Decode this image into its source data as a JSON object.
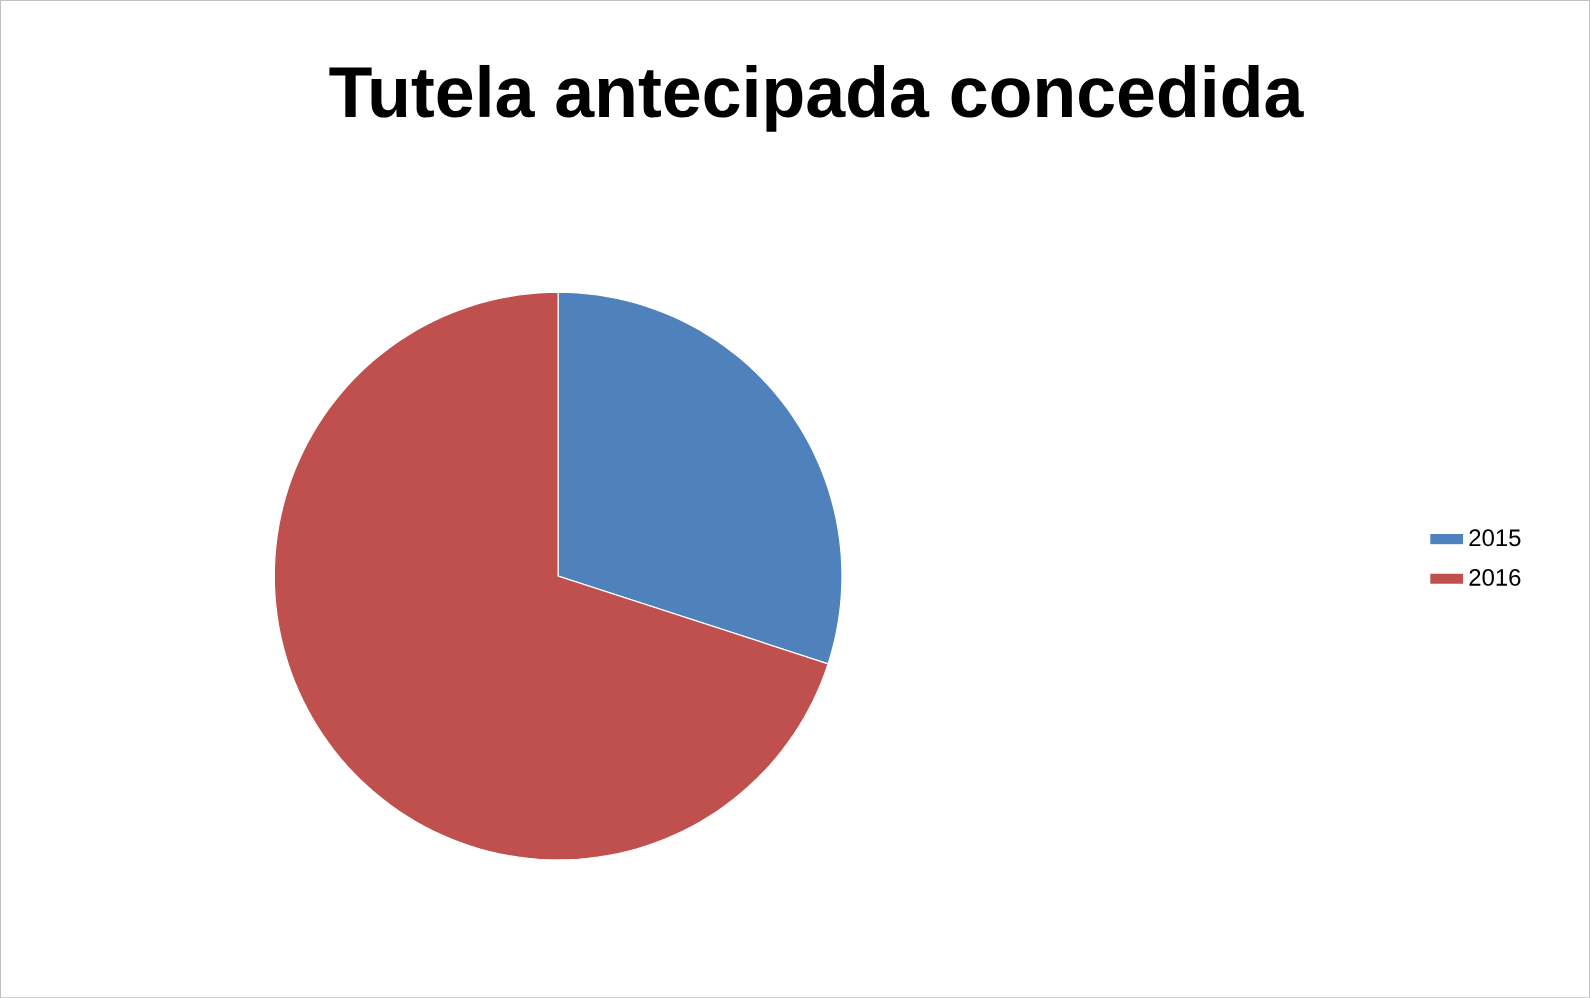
{
  "chart_data": {
    "type": "pie",
    "title": "Tutela antecipada concedida",
    "categories": [
      "2015",
      "2016"
    ],
    "values": [
      30,
      70
    ],
    "colors": [
      "#4f81bd",
      "#c0504d"
    ],
    "legend": "right"
  }
}
